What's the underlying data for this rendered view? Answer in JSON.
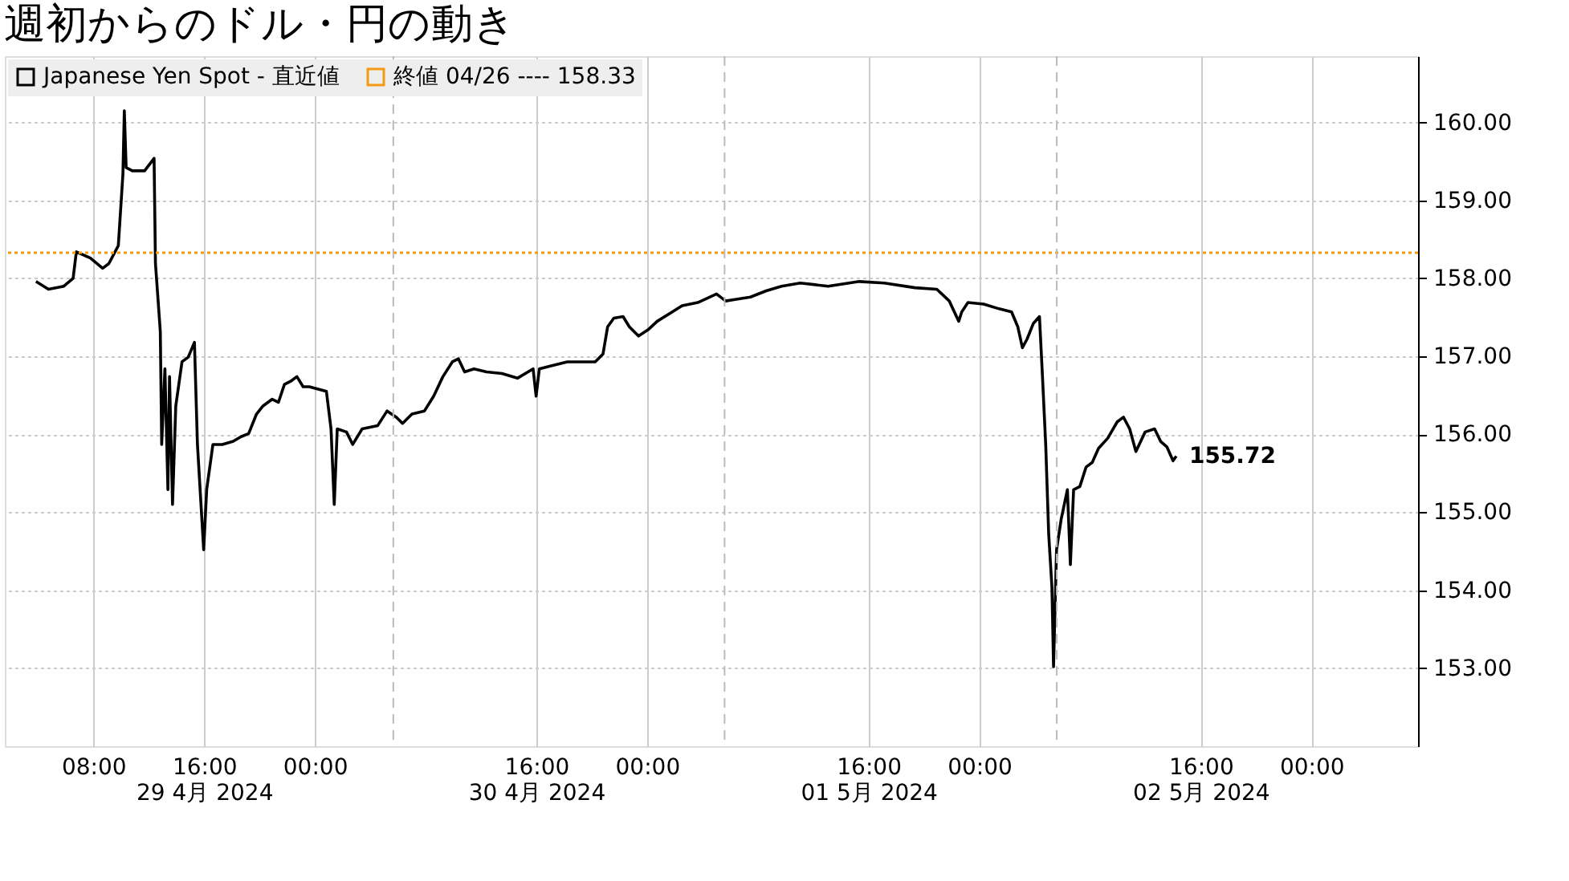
{
  "chart_data": {
    "type": "line",
    "title": "週初からのドル・円の動き",
    "x": [
      "2024-04-29T03:51",
      "2024-04-29T04:45",
      "2024-04-29T05:52",
      "2024-04-29T06:32",
      "2024-04-29T06:46",
      "2024-04-29T07:47",
      "2024-04-29T08:40",
      "2024-04-29T09:07",
      "2024-04-29T09:48",
      "2024-04-29T10:08",
      "2024-04-29T10:14",
      "2024-04-29T10:22",
      "2024-04-29T10:49",
      "2024-04-29T11:42",
      "2024-04-29T12:23",
      "2024-04-29T12:29",
      "2024-04-29T12:50",
      "2024-04-29T12:56",
      "2024-04-29T13:10",
      "2024-04-29T13:23",
      "2024-04-29T13:30",
      "2024-04-29T13:43",
      "2024-04-29T13:57",
      "2024-04-29T14:24",
      "2024-04-29T14:51",
      "2024-04-29T15:18",
      "2024-04-29T15:31",
      "2024-04-29T15:58",
      "2024-04-29T16:11",
      "2024-04-29T16:38",
      "2024-04-29T17:19",
      "2024-04-29T18:06",
      "2024-04-29T18:40",
      "2024-04-29T19:13",
      "2024-04-29T19:47",
      "2024-04-29T20:14",
      "2024-04-29T20:55",
      "2024-04-29T21:22",
      "2024-04-29T21:48",
      "2024-04-29T22:15",
      "2024-04-29T22:42",
      "2024-04-29T23:09",
      "2024-04-29T23:36",
      "2024-04-30T00:50",
      "2024-04-30T01:10",
      "2024-04-30T01:24",
      "2024-04-30T01:37",
      "2024-04-30T02:17",
      "2024-04-30T02:44",
      "2024-04-30T03:25",
      "2024-04-30T04:32",
      "2024-04-30T05:13",
      "2024-04-30T05:53",
      "2024-04-30T06:20",
      "2024-04-30T07:01",
      "2024-04-30T07:55",
      "2024-04-30T08:35",
      "2024-04-30T09:15",
      "2024-04-30T09:56",
      "2024-04-30T10:22",
      "2024-04-30T10:49",
      "2024-04-30T11:30",
      "2024-04-30T12:24",
      "2024-04-30T13:31",
      "2024-04-30T14:38",
      "2024-04-30T15:46",
      "2024-04-30T15:59",
      "2024-04-30T16:13",
      "2024-04-30T17:07",
      "2024-04-30T18:14",
      "2024-04-30T19:21",
      "2024-04-30T20:15",
      "2024-04-30T20:49",
      "2024-04-30T21:09",
      "2024-04-30T21:36",
      "2024-04-30T22:16",
      "2024-04-30T22:43",
      "2024-04-30T23:23",
      "2024-05-01T00:04",
      "2024-05-01T00:44",
      "2024-05-01T01:38",
      "2024-05-01T02:32",
      "2024-05-01T03:40",
      "2024-05-01T05:01",
      "2024-05-01T05:41",
      "2024-05-01T06:21",
      "2024-05-01T07:28",
      "2024-05-01T08:36",
      "2024-05-01T09:43",
      "2024-05-01T11:04",
      "2024-05-01T13:05",
      "2024-05-01T15:20",
      "2024-05-01T17:08",
      "2024-05-01T19:22",
      "2024-05-01T20:56",
      "2024-05-01T21:50",
      "2024-05-01T22:31",
      "2024-05-01T22:44",
      "2024-05-01T23:11",
      "2024-05-02T00:19",
      "2024-05-02T01:26",
      "2024-05-02T02:20",
      "2024-05-02T02:47",
      "2024-05-02T03:07",
      "2024-05-02T03:27",
      "2024-05-02T03:54",
      "2024-05-02T04:21",
      "2024-05-02T04:34",
      "2024-05-02T04:48",
      "2024-05-02T05:01",
      "2024-05-02T05:15",
      "2024-05-02T05:22",
      "2024-05-02T05:35",
      "2024-05-02T05:55",
      "2024-05-02T06:22",
      "2024-05-02T06:35",
      "2024-05-02T06:49",
      "2024-05-02T07:16",
      "2024-05-02T07:43",
      "2024-05-02T08:10",
      "2024-05-02T08:37",
      "2024-05-02T09:17",
      "2024-05-02T09:58",
      "2024-05-02T10:25",
      "2024-05-02T10:52",
      "2024-05-02T11:19",
      "2024-05-02T11:59",
      "2024-05-02T12:40",
      "2024-05-02T13:06",
      "2024-05-02T13:33",
      "2024-05-02T14:00",
      "2024-05-02T14:14"
    ],
    "series": [
      {
        "name": "Japanese Yen Spot - 直近値",
        "color": "#000000",
        "values": [
          157.96,
          157.86,
          157.9,
          158.0,
          158.34,
          158.26,
          158.13,
          158.19,
          158.42,
          159.34,
          160.15,
          159.42,
          159.38,
          159.38,
          159.54,
          158.19,
          157.32,
          155.87,
          156.84,
          155.29,
          156.74,
          155.1,
          156.36,
          156.93,
          156.99,
          157.18,
          155.87,
          154.52,
          155.29,
          155.87,
          155.87,
          155.91,
          155.97,
          156.01,
          156.26,
          156.36,
          156.45,
          156.41,
          156.64,
          156.68,
          156.74,
          156.61,
          156.61,
          156.55,
          156.07,
          155.1,
          156.07,
          156.03,
          155.87,
          156.07,
          156.11,
          156.3,
          156.22,
          156.14,
          156.26,
          156.3,
          156.49,
          156.74,
          156.93,
          156.97,
          156.8,
          156.84,
          156.8,
          156.78,
          156.72,
          156.84,
          156.49,
          156.84,
          156.88,
          156.93,
          156.93,
          156.93,
          157.03,
          157.38,
          157.49,
          157.51,
          157.38,
          157.26,
          157.34,
          157.45,
          157.55,
          157.65,
          157.69,
          157.8,
          157.71,
          157.73,
          157.76,
          157.84,
          157.9,
          157.94,
          157.9,
          157.96,
          157.94,
          157.88,
          157.86,
          157.71,
          157.45,
          157.57,
          157.69,
          157.67,
          157.61,
          157.57,
          157.38,
          157.11,
          157.22,
          157.42,
          157.51,
          156.74,
          155.87,
          154.72,
          154.04,
          153.02,
          154.52,
          154.91,
          155.29,
          154.33,
          155.29,
          155.33,
          155.58,
          155.64,
          155.82,
          155.95,
          156.16,
          156.22,
          156.07,
          155.78,
          156.03,
          156.07,
          155.91,
          155.84,
          155.66,
          155.72
        ]
      }
    ],
    "xlim": [
      "2024-04-29T01:36",
      "2024-05-03T07:42"
    ],
    "xticks": [
      {
        "value": "2024-04-29T08:00",
        "label": "08:00"
      },
      {
        "value": "2024-04-29T16:00",
        "label": "16:00\n29 4月 2024"
      },
      {
        "value": "2024-04-30T00:00",
        "label": "00:00"
      },
      {
        "value": "2024-04-30T16:00",
        "label": "16:00\n30 4月 2024"
      },
      {
        "value": "2024-05-01T00:00",
        "label": "00:00"
      },
      {
        "value": "2024-05-01T16:00",
        "label": "16:00\n01 5月 2024"
      },
      {
        "value": "2024-05-02T00:00",
        "label": "00:00"
      },
      {
        "value": "2024-05-02T16:00",
        "label": "16:00\n02 5月 2024"
      },
      {
        "value": "2024-05-03T00:00",
        "label": "00:00"
      }
    ],
    "ylim": [
      152.0,
      160.85
    ],
    "yticks": [
      {
        "value": 153,
        "label": "153.00"
      },
      {
        "value": 154,
        "label": "154.00"
      },
      {
        "value": 155,
        "label": "155.00"
      },
      {
        "value": 156,
        "label": "156.00"
      },
      {
        "value": 157,
        "label": "157.00"
      },
      {
        "value": 158,
        "label": "158.00"
      },
      {
        "value": 159,
        "label": "159.00"
      },
      {
        "value": 160,
        "label": "160.00"
      }
    ],
    "ref_lines": [
      {
        "axis": "y",
        "value": 158.33,
        "label": "終値 04/26 ---- 158.33",
        "color": "#f39c12",
        "line_style": "dotted"
      },
      {
        "axis": "x",
        "value": "2024-04-30T05:40",
        "color": "#bbbbbb",
        "line_style": "dashed"
      },
      {
        "axis": "x",
        "value": "2024-05-01T05:36",
        "color": "#bbbbbb",
        "line_style": "dashed"
      },
      {
        "axis": "x",
        "value": "2024-05-02T05:36",
        "color": "#bbbbbb",
        "line_style": "dashed"
      }
    ],
    "annotations": [
      {
        "text": "155.72",
        "x": "2024-05-02T14:14",
        "y": 155.72
      }
    ],
    "grid": true,
    "legend": "top left",
    "marker": "none",
    "line_style": "solid"
  }
}
